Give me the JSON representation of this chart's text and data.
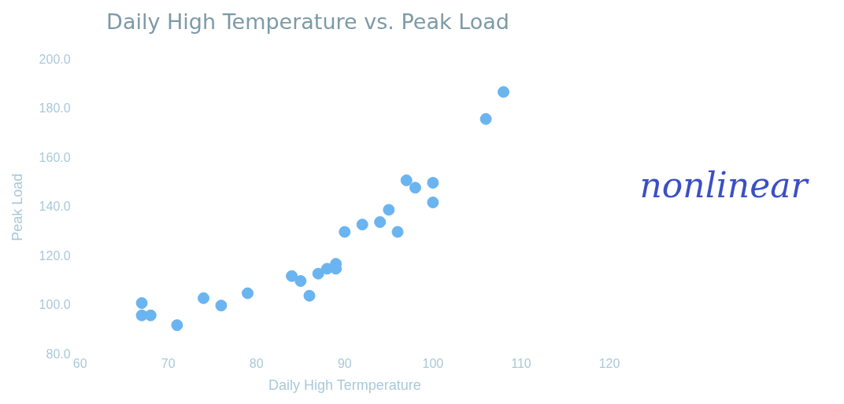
{
  "chart_data": {
    "type": "scatter",
    "title": "Daily High Temperature vs. Peak Load",
    "xlabel": "Daily High Termperature",
    "ylabel": "Peak Load",
    "annotations": [
      "nonlinear"
    ],
    "x": [
      67,
      67,
      68,
      71,
      74,
      76,
      79,
      84,
      85,
      86,
      87,
      88,
      89,
      89,
      90,
      92,
      94,
      95,
      96,
      97,
      98,
      100,
      100,
      106,
      108
    ],
    "series": [
      {
        "color": "#6ab4f0",
        "values": [
          101,
          96,
          96,
          92,
          103,
          100,
          105,
          112,
          110,
          104,
          113,
          115,
          117,
          115,
          130,
          133,
          134,
          139,
          130,
          151,
          148,
          150,
          142,
          176,
          187
        ]
      }
    ],
    "xlim": [
      60,
      120
    ],
    "xticks": [
      60,
      70,
      80,
      90,
      100,
      110,
      120
    ],
    "ylim": [
      80,
      200
    ],
    "yticks": [
      {
        "value": 80,
        "label": "80.0"
      },
      {
        "value": 100,
        "label": "100.0"
      },
      {
        "value": 120,
        "label": "120.0"
      },
      {
        "value": 140,
        "label": "140.0"
      },
      {
        "value": 160,
        "label": "160.0"
      },
      {
        "value": 180,
        "label": "180.0"
      },
      {
        "value": 200,
        "label": "200.0"
      }
    ],
    "grid": false,
    "legend": false,
    "marker": "circle"
  }
}
